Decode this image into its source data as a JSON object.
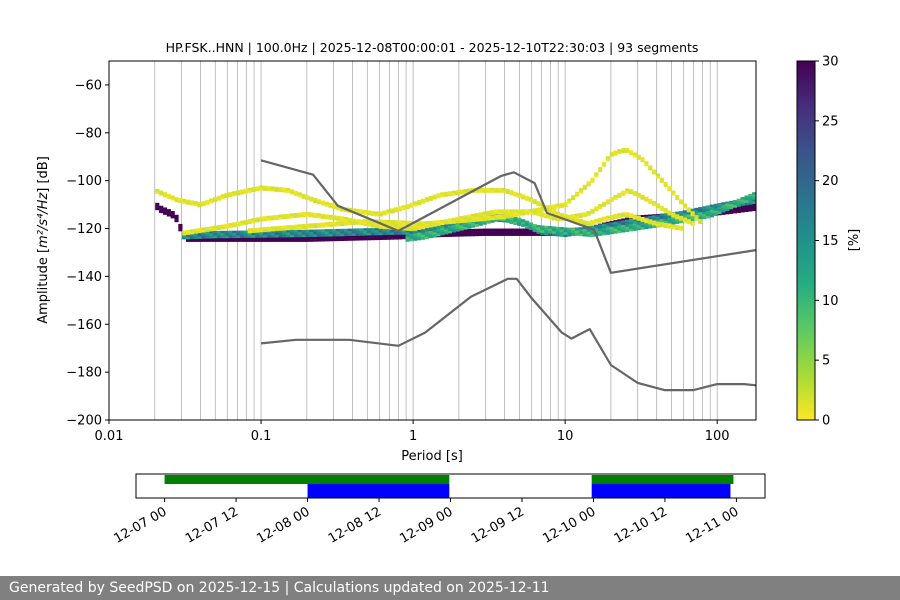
{
  "chart_data": {
    "type": "heatmap",
    "title": "HP.FSK..HNN | 100.0Hz | 2025-12-08T00:00:01 - 2025-12-10T22:30:03 | 93 segments",
    "xlabel": "Period [s]",
    "ylabel_text": "Amplitude [",
    "ylabel_units": "m²/s⁴/Hz",
    "ylabel_suffix": "] [dB]",
    "xscale": "log",
    "xlim": [
      0.01,
      180
    ],
    "ylim": [
      -200,
      -50
    ],
    "x_ticks": [
      0.01,
      0.1,
      1,
      10,
      100
    ],
    "x_tick_labels": [
      "0.01",
      "0.1",
      "1",
      "10",
      "100"
    ],
    "y_ticks": [
      -200,
      -180,
      -160,
      -140,
      -120,
      -100,
      -80,
      -60
    ],
    "y_tick_labels": [
      "−200",
      "−180",
      "−160",
      "−140",
      "−120",
      "−100",
      "−80",
      "−60"
    ],
    "grid_periods": [
      0.02,
      0.03,
      0.04,
      0.05,
      0.06,
      0.07,
      0.08,
      0.09,
      0.1,
      0.2,
      0.3,
      0.4,
      0.5,
      0.6,
      0.7,
      0.8,
      0.9,
      1,
      2,
      3,
      4,
      5,
      6,
      7,
      8,
      9,
      10,
      20,
      30,
      40,
      50,
      60,
      70,
      80,
      90,
      100
    ],
    "colorbar": {
      "label": "[%]",
      "range": [
        0,
        30
      ],
      "ticks": [
        0,
        5,
        10,
        15,
        20,
        25,
        30
      ],
      "tick_labels": [
        "0",
        "5",
        "10",
        "15",
        "20",
        "25",
        "30"
      ]
    },
    "reference_curves": [
      {
        "name": "high-noise-model",
        "color": "#666666",
        "points": [
          [
            0.1,
            -91.5
          ],
          [
            0.22,
            -97.5
          ],
          [
            0.32,
            -110.5
          ],
          [
            0.8,
            -121
          ],
          [
            3.8,
            -98
          ],
          [
            4.6,
            -96.5
          ],
          [
            6.3,
            -101
          ],
          [
            7.6,
            -113.5
          ],
          [
            15.5,
            -120.5
          ],
          [
            20,
            -138.5
          ],
          [
            180,
            -129
          ]
        ]
      },
      {
        "name": "low-noise-model",
        "color": "#666666",
        "points": [
          [
            0.1,
            -168
          ],
          [
            0.17,
            -166.5
          ],
          [
            0.38,
            -166.5
          ],
          [
            0.8,
            -169
          ],
          [
            1.2,
            -163.5
          ],
          [
            2.4,
            -148.5
          ],
          [
            4.2,
            -141
          ],
          [
            4.8,
            -141
          ],
          [
            6,
            -149
          ],
          [
            9.5,
            -163.5
          ],
          [
            11,
            -166
          ],
          [
            14.5,
            -162
          ],
          [
            20,
            -177
          ],
          [
            30,
            -184.5
          ],
          [
            45,
            -187.5
          ],
          [
            70,
            -187.5
          ],
          [
            100,
            -185
          ],
          [
            150,
            -185
          ],
          [
            180,
            -185.5
          ]
        ]
      }
    ],
    "psd_bands": [
      {
        "name": "dominant-mode",
        "thickness_db": 3,
        "min_percent": 30,
        "max_percent": 30,
        "points": [
          [
            0.02,
            -110
          ],
          [
            0.022,
            -112
          ],
          [
            0.026,
            -114
          ],
          [
            0.028,
            -116
          ],
          [
            0.03,
            -121
          ],
          [
            0.032,
            -124
          ],
          [
            0.05,
            -124
          ],
          [
            0.2,
            -124
          ],
          [
            0.8,
            -123
          ],
          [
            1.5,
            -122
          ],
          [
            3,
            -121.5
          ],
          [
            8,
            -121.5
          ],
          [
            14,
            -121
          ],
          [
            18,
            -119
          ],
          [
            30,
            -116
          ],
          [
            50,
            -115
          ],
          [
            100,
            -113
          ],
          [
            180,
            -111
          ]
        ]
      },
      {
        "name": "dense-band-mid",
        "thickness_db": 3,
        "min_percent": 12,
        "max_percent": 20,
        "points": [
          [
            0.03,
            -123
          ],
          [
            0.05,
            -122.5
          ],
          [
            0.2,
            -122
          ],
          [
            0.8,
            -121
          ],
          [
            1.3,
            -121
          ],
          [
            2,
            -117
          ],
          [
            3,
            -115
          ],
          [
            4.2,
            -116
          ],
          [
            5.5,
            -118
          ],
          [
            6.8,
            -121
          ],
          [
            10,
            -122
          ],
          [
            16,
            -120
          ],
          [
            30,
            -117
          ],
          [
            60,
            -114
          ],
          [
            100,
            -111
          ],
          [
            180,
            -108
          ]
        ]
      },
      {
        "name": "dense-band-upper",
        "thickness_db": 3,
        "min_percent": 8,
        "max_percent": 14,
        "points": [
          [
            0.9,
            -124
          ],
          [
            1.2,
            -123
          ],
          [
            2.5,
            -118
          ],
          [
            3.8,
            -115
          ],
          [
            5,
            -117
          ],
          [
            6.5,
            -120
          ],
          [
            15,
            -122
          ],
          [
            40,
            -118
          ],
          [
            90,
            -114
          ],
          [
            180,
            -106
          ]
        ]
      },
      {
        "name": "sparse-mode-1",
        "thickness_db": 2,
        "min_percent": 0.5,
        "max_percent": 2,
        "points": [
          [
            0.02,
            -104
          ],
          [
            0.028,
            -108
          ],
          [
            0.04,
            -110
          ],
          [
            0.06,
            -106
          ],
          [
            0.1,
            -103
          ],
          [
            0.15,
            -104
          ],
          [
            0.22,
            -108
          ],
          [
            0.35,
            -112
          ],
          [
            0.6,
            -114
          ],
          [
            0.9,
            -111
          ],
          [
            1.5,
            -106
          ],
          [
            2.5,
            -104
          ],
          [
            4,
            -104
          ],
          [
            6,
            -108
          ],
          [
            9,
            -114
          ],
          [
            14,
            -118
          ],
          [
            18,
            -116
          ],
          [
            25,
            -114
          ],
          [
            40,
            -118
          ],
          [
            60,
            -120
          ]
        ]
      },
      {
        "name": "sparse-mode-2",
        "thickness_db": 2,
        "min_percent": 0.5,
        "max_percent": 2,
        "points": [
          [
            0.03,
            -122
          ],
          [
            0.06,
            -119
          ],
          [
            0.1,
            -116
          ],
          [
            0.2,
            -114
          ],
          [
            0.35,
            -116
          ],
          [
            0.6,
            -119
          ],
          [
            1,
            -120
          ],
          [
            2,
            -116
          ],
          [
            3.5,
            -113
          ],
          [
            6,
            -113
          ],
          [
            9,
            -116
          ],
          [
            14,
            -114
          ],
          [
            20,
            -108
          ],
          [
            26,
            -104
          ],
          [
            35,
            -108
          ],
          [
            50,
            -114
          ],
          [
            70,
            -118
          ]
        ]
      },
      {
        "name": "sparse-mode-3",
        "thickness_db": 2,
        "min_percent": 0.5,
        "max_percent": 2,
        "points": [
          [
            0.08,
            -121
          ],
          [
            0.2,
            -119
          ],
          [
            0.5,
            -117
          ],
          [
            1.2,
            -118
          ],
          [
            4,
            -115
          ],
          [
            10,
            -110
          ],
          [
            15,
            -100
          ],
          [
            20,
            -89
          ],
          [
            25,
            -87
          ],
          [
            32,
            -91
          ],
          [
            45,
            -101
          ],
          [
            60,
            -110
          ],
          [
            80,
            -118
          ]
        ]
      }
    ],
    "timeline": {
      "tick_labels": [
        "12-07 00",
        "12-07 12",
        "12-08 00",
        "12-08 12",
        "12-09 00",
        "12-09 12",
        "12-10 00",
        "12-10 12",
        "12-11 00"
      ],
      "axis_start_hours": -4.8,
      "axis_end_hours": 100.8,
      "data_segments_hours": [
        [
          0,
          47.8
        ],
        [
          71.7,
          95.5
        ]
      ],
      "psd_segments_hours": [
        [
          24,
          47.8
        ],
        [
          71.7,
          95
        ]
      ],
      "data_color": "#008000",
      "psd_color": "#0000ff"
    }
  },
  "footer": {
    "generated": "Generated by SeedPSD on 2025-12-15",
    "separator": " | ",
    "updated": "Calculations updated on 2025-12-11"
  }
}
